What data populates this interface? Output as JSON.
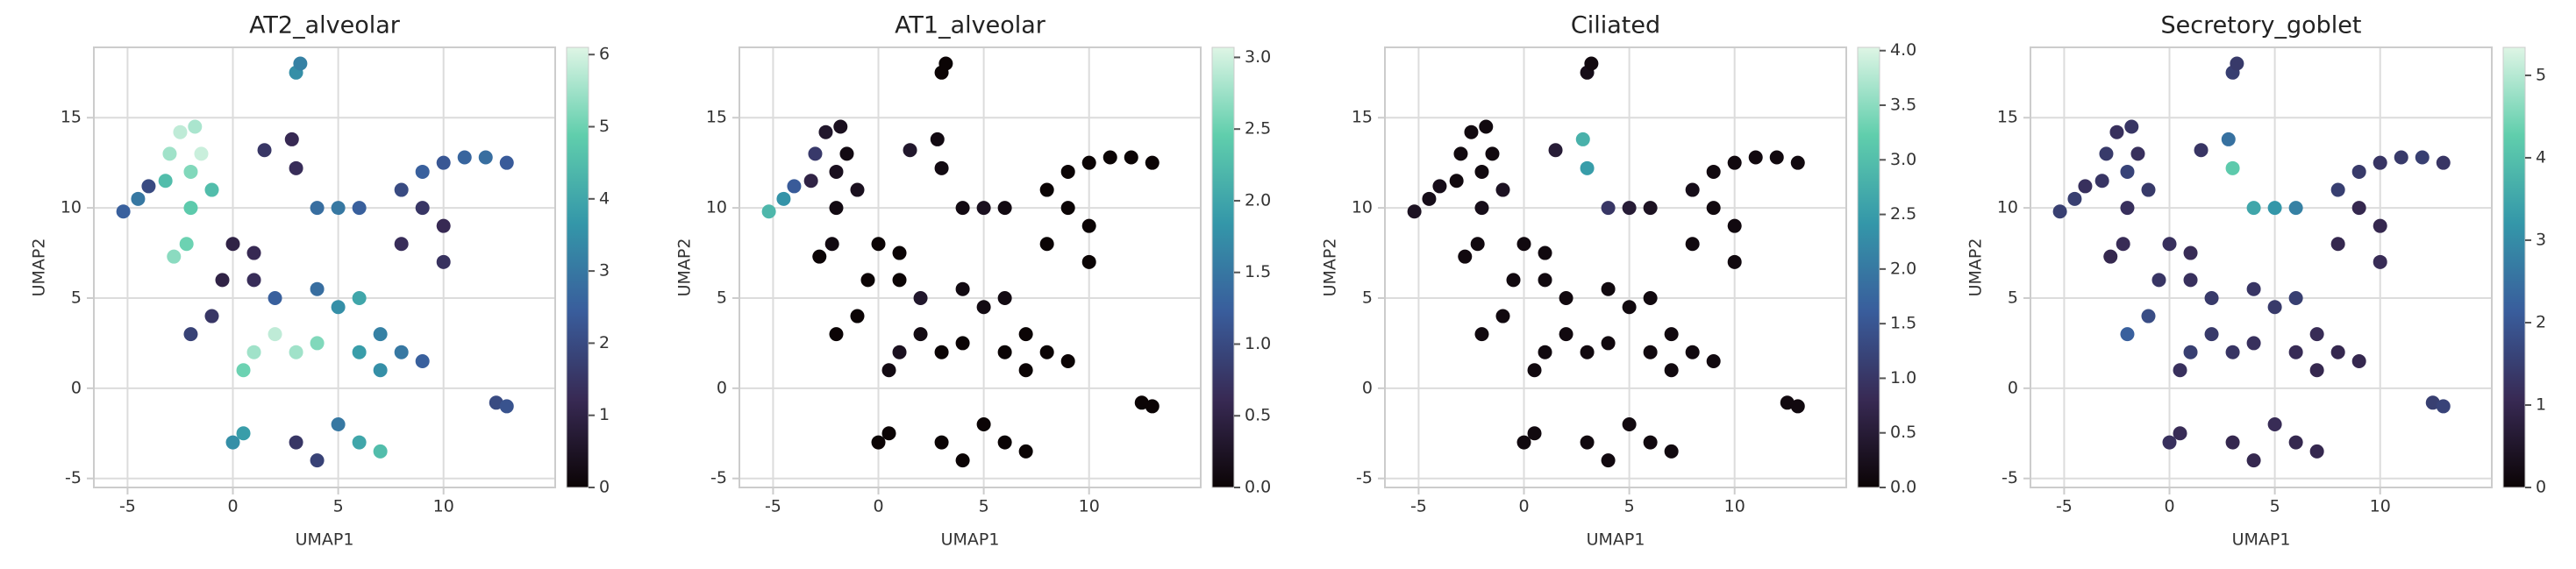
{
  "chart_data": [
    {
      "type": "scatter",
      "title": "AT2_alveolar",
      "x_label": "UMAP1",
      "y_label": "UMAP2",
      "xlim": [
        -6.6,
        15.3
      ],
      "ylim": [
        -5.5,
        18.9
      ],
      "xticks": [
        -5,
        0,
        5,
        10
      ],
      "yticks": [
        -5,
        0,
        5,
        10,
        15
      ],
      "grid": true,
      "colormap": [
        "#0b0405",
        "#382a54",
        "#395d9c",
        "#3497a9",
        "#60ceac",
        "#def5e5"
      ],
      "clim": [
        0,
        6.1
      ],
      "cticks": [
        0,
        1,
        2,
        3,
        4,
        5,
        6
      ],
      "x": [
        -5.2,
        -4.5,
        -4,
        -3.2,
        -3,
        -2.5,
        -1.8,
        -1.5,
        -2,
        -2,
        -2.2,
        -2.8,
        -1,
        3,
        3.2,
        1.5,
        2.8,
        3,
        4,
        5,
        6,
        8,
        9,
        10,
        11,
        12,
        13,
        9,
        10,
        10,
        8,
        0,
        1,
        -0.5,
        1,
        2,
        4,
        5,
        6,
        -2,
        -1,
        1,
        2,
        3,
        4,
        6,
        7,
        8,
        9,
        7,
        0.5,
        12.5,
        13,
        0,
        0.5,
        3,
        4,
        5,
        6,
        7
      ],
      "y": [
        9.8,
        10.5,
        11.2,
        11.5,
        13,
        14.2,
        14.5,
        13,
        12,
        10,
        8,
        7.3,
        11,
        17.5,
        18,
        13.2,
        13.8,
        12.2,
        10,
        10,
        10,
        11,
        12,
        12.5,
        12.8,
        12.8,
        12.5,
        10,
        9,
        7,
        8,
        8,
        7.5,
        6,
        6,
        5,
        5.5,
        4.5,
        5,
        3,
        4,
        2,
        3,
        2,
        2.5,
        2,
        1,
        2,
        1.5,
        3,
        1,
        -0.8,
        -1,
        -3,
        -2.5,
        -3,
        -4,
        -2,
        -3,
        -3.5
      ],
      "values": [
        2.5,
        3,
        2,
        4.5,
        5.5,
        5.8,
        5.6,
        5.9,
        5.2,
        4.8,
        5,
        5.3,
        4.5,
        3.5,
        3.2,
        1.5,
        1.2,
        1.3,
        2.8,
        3,
        2.5,
        2,
        2.5,
        2.3,
        2.6,
        2.8,
        2.4,
        1.5,
        1.2,
        1.4,
        1.3,
        1,
        1.2,
        1,
        1.3,
        2.5,
        2.8,
        3.5,
        4,
        1.8,
        1.5,
        5.5,
        5.8,
        5.5,
        5.2,
        3.8,
        3.5,
        3,
        2.5,
        3.2,
        5,
        2,
        2.2,
        3.5,
        3.8,
        1.5,
        1.8,
        3,
        4,
        4.5
      ]
    },
    {
      "type": "scatter",
      "title": "AT1_alveolar",
      "x_label": "UMAP1",
      "y_label": "UMAP2",
      "xlim": [
        -6.6,
        15.3
      ],
      "ylim": [
        -5.5,
        18.9
      ],
      "xticks": [
        -5,
        0,
        5,
        10
      ],
      "yticks": [
        -5,
        0,
        5,
        10,
        15
      ],
      "grid": true,
      "colormap": [
        "#0b0405",
        "#382a54",
        "#395d9c",
        "#3497a9",
        "#60ceac",
        "#def5e5"
      ],
      "clim": [
        0,
        3.07
      ],
      "cticks": [
        {
          "value": 0,
          "label": "0.0"
        },
        0.5,
        {
          "value": 1,
          "label": "1.0"
        },
        1.5,
        {
          "value": 2,
          "label": "2.0"
        },
        2.5,
        {
          "value": 3,
          "label": "3.0"
        }
      ],
      "x": [
        -5.2,
        -4.5,
        -4,
        -3.2,
        -3,
        -2.5,
        -1.8,
        -1.5,
        -2,
        -2,
        -2.2,
        -2.8,
        -1,
        3,
        3.2,
        1.5,
        2.8,
        3,
        4,
        5,
        6,
        8,
        9,
        10,
        11,
        12,
        13,
        9,
        10,
        10,
        8,
        0,
        1,
        -0.5,
        1,
        2,
        4,
        5,
        6,
        -2,
        -1,
        1,
        2,
        3,
        4,
        6,
        7,
        8,
        9,
        7,
        0.5,
        12.5,
        13,
        0,
        0.5,
        3,
        4,
        5,
        6,
        7
      ],
      "y": [
        9.8,
        10.5,
        11.2,
        11.5,
        13,
        14.2,
        14.5,
        13,
        12,
        10,
        8,
        7.3,
        11,
        17.5,
        18,
        13.2,
        13.8,
        12.2,
        10,
        10,
        10,
        11,
        12,
        12.5,
        12.8,
        12.8,
        12.5,
        10,
        9,
        7,
        8,
        8,
        7.5,
        6,
        6,
        5,
        5.5,
        4.5,
        5,
        3,
        4,
        2,
        3,
        2,
        2.5,
        2,
        1,
        2,
        1.5,
        3,
        1,
        -0.8,
        -1,
        -3,
        -2.5,
        -3,
        -4,
        -2,
        -3,
        -3.5
      ],
      "values": [
        2.2,
        1.8,
        1.2,
        0.5,
        0.8,
        0.3,
        0.2,
        0.1,
        0.2,
        0.1,
        0.1,
        0,
        0.2,
        0,
        0,
        0.3,
        0.1,
        0.1,
        0.1,
        0.2,
        0.1,
        0,
        0,
        0,
        0,
        0,
        0,
        0,
        0,
        0,
        0,
        0,
        0,
        0,
        0,
        0.3,
        0.1,
        0.1,
        0.1,
        0,
        0,
        0.2,
        0.1,
        0,
        0,
        0,
        0,
        0,
        0,
        0,
        0.1,
        0,
        0,
        0,
        0,
        0,
        0,
        0,
        0,
        0
      ]
    },
    {
      "type": "scatter",
      "title": "Ciliated",
      "x_label": "UMAP1",
      "y_label": "UMAP2",
      "xlim": [
        -6.6,
        15.3
      ],
      "ylim": [
        -5.5,
        18.9
      ],
      "xticks": [
        -5,
        0,
        5,
        10
      ],
      "yticks": [
        -5,
        0,
        5,
        10,
        15
      ],
      "grid": true,
      "colormap": [
        "#0b0405",
        "#382a54",
        "#395d9c",
        "#3497a9",
        "#60ceac",
        "#def5e5"
      ],
      "clim": [
        0,
        4.03
      ],
      "cticks": [
        {
          "value": 0,
          "label": "0.0"
        },
        0.5,
        {
          "value": 1,
          "label": "1.0"
        },
        1.5,
        {
          "value": 2,
          "label": "2.0"
        },
        2.5,
        {
          "value": 3,
          "label": "3.0"
        },
        3.5,
        {
          "value": 4,
          "label": "4.0"
        }
      ],
      "x": [
        -5.2,
        -4.5,
        -4,
        -3.2,
        -3,
        -2.5,
        -1.8,
        -1.5,
        -2,
        -2,
        -2.2,
        -2.8,
        -1,
        3,
        3.2,
        1.5,
        2.8,
        3,
        4,
        5,
        6,
        8,
        9,
        10,
        11,
        12,
        13,
        9,
        10,
        10,
        8,
        0,
        1,
        -0.5,
        1,
        2,
        4,
        5,
        6,
        -2,
        -1,
        1,
        2,
        3,
        4,
        6,
        7,
        8,
        9,
        7,
        0.5,
        12.5,
        13,
        0,
        0.5,
        3,
        4,
        5,
        6,
        7
      ],
      "y": [
        9.8,
        10.5,
        11.2,
        11.5,
        13,
        14.2,
        14.5,
        13,
        12,
        10,
        8,
        7.3,
        11,
        17.5,
        18,
        13.2,
        13.8,
        12.2,
        10,
        10,
        10,
        11,
        12,
        12.5,
        12.8,
        12.8,
        12.5,
        10,
        9,
        7,
        8,
        8,
        7.5,
        6,
        6,
        5,
        5.5,
        4.5,
        5,
        3,
        4,
        2,
        3,
        2,
        2.5,
        2,
        1,
        2,
        1.5,
        3,
        1,
        -0.8,
        -1,
        -3,
        -2.5,
        -3,
        -4,
        -2,
        -3,
        -3.5
      ],
      "values": [
        0.3,
        0.2,
        0.2,
        0.1,
        0.1,
        0.1,
        0.1,
        0.1,
        0.1,
        0.2,
        0.1,
        0.1,
        0.3,
        0.2,
        0.1,
        0.5,
        2.8,
        2.5,
        1,
        0.5,
        0.3,
        0.2,
        0.1,
        0.1,
        0.1,
        0.1,
        0.1,
        0.1,
        0.1,
        0.1,
        0.1,
        0.1,
        0.1,
        0.1,
        0.1,
        0.1,
        0.1,
        0.1,
        0.1,
        0.1,
        0.1,
        0.1,
        0.1,
        0.1,
        0.1,
        0.1,
        0.1,
        0.1,
        0.1,
        0.1,
        0.1,
        0.1,
        0.1,
        0.1,
        0.1,
        0.1,
        0.1,
        0.1,
        0.1,
        0.1
      ]
    },
    {
      "type": "scatter",
      "title": "Secretory_goblet",
      "x_label": "UMAP1",
      "y_label": "UMAP2",
      "xlim": [
        -6.6,
        15.3
      ],
      "ylim": [
        -5.5,
        18.9
      ],
      "xticks": [
        -5,
        0,
        5,
        10
      ],
      "yticks": [
        -5,
        0,
        5,
        10,
        15
      ],
      "grid": true,
      "colormap": [
        "#0b0405",
        "#382a54",
        "#395d9c",
        "#3497a9",
        "#60ceac",
        "#def5e5"
      ],
      "clim": [
        0,
        5.34
      ],
      "cticks": [
        0,
        1,
        2,
        3,
        4,
        5
      ],
      "x": [
        -5.2,
        -4.5,
        -4,
        -3.2,
        -3,
        -2.5,
        -1.8,
        -1.5,
        -2,
        -2,
        -2.2,
        -2.8,
        -1,
        3,
        3.2,
        1.5,
        2.8,
        3,
        4,
        5,
        6,
        8,
        9,
        10,
        11,
        12,
        13,
        9,
        10,
        10,
        8,
        0,
        1,
        -0.5,
        1,
        2,
        4,
        5,
        6,
        -2,
        -1,
        1,
        2,
        3,
        4,
        6,
        7,
        8,
        9,
        7,
        0.5,
        12.5,
        13,
        0,
        0.5,
        3,
        4,
        5,
        6,
        7
      ],
      "y": [
        9.8,
        10.5,
        11.2,
        11.5,
        13,
        14.2,
        14.5,
        13,
        12,
        10,
        8,
        7.3,
        11,
        17.5,
        18,
        13.2,
        13.8,
        12.2,
        10,
        10,
        10,
        11,
        12,
        12.5,
        12.8,
        12.8,
        12.5,
        10,
        9,
        7,
        8,
        8,
        7.5,
        6,
        6,
        5,
        5.5,
        4.5,
        5,
        3,
        4,
        2,
        3,
        2,
        2.5,
        2,
        1,
        2,
        1.5,
        3,
        1,
        -0.8,
        -1,
        -3,
        -2.5,
        -3,
        -4,
        -2,
        -3,
        -3.5
      ],
      "values": [
        1.5,
        1.5,
        1.2,
        1.3,
        1.4,
        1.2,
        1.3,
        1.2,
        1.6,
        1.2,
        1.1,
        1,
        1.4,
        1.5,
        1.4,
        1.3,
        2.5,
        4.2,
        3.5,
        3.2,
        2.8,
        1.5,
        1.4,
        1.3,
        1.4,
        1.5,
        1.3,
        1,
        1,
        1.1,
        1,
        1.2,
        1.1,
        1.3,
        1.2,
        1.4,
        1.3,
        1.4,
        1.5,
        2.2,
        1.8,
        1.5,
        1.4,
        1.3,
        1.2,
        1.1,
        1,
        1,
        1,
        1.1,
        1.2,
        1.5,
        1.6,
        1.2,
        1.1,
        1,
        1,
        1.1,
        1,
        1
      ]
    }
  ]
}
